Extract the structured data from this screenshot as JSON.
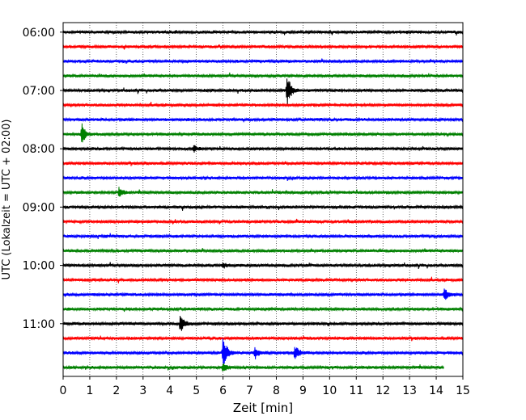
{
  "chart_data": {
    "type": "line",
    "title": "",
    "xlabel": "Zeit  [min]",
    "ylabel": "UTC (Lokalzeit = UTC + 02:00)",
    "xlim": [
      0,
      15
    ],
    "x_ticks": [
      "0",
      "1",
      "2",
      "3",
      "4",
      "5",
      "6",
      "7",
      "8",
      "9",
      "10",
      "11",
      "12",
      "13",
      "14",
      "15"
    ],
    "y_tick_labels": [
      "06:00",
      "07:00",
      "08:00",
      "09:00",
      "10:00",
      "11:00"
    ],
    "vertical_grid": true,
    "grid_style": "dotted",
    "trace_colors": [
      "#000000",
      "#ff0000",
      "#0000ff",
      "#008000"
    ],
    "trace_start_times": [
      "06:00",
      "06:15",
      "06:30",
      "06:45",
      "07:00",
      "07:15",
      "07:30",
      "07:45",
      "08:00",
      "08:15",
      "08:30",
      "08:45",
      "09:00",
      "09:15",
      "09:30",
      "09:45",
      "10:00",
      "10:15",
      "10:30",
      "10:45",
      "11:00",
      "11:15",
      "11:30",
      "11:45"
    ],
    "last_trace_end_min": 14.3,
    "events": [
      {
        "trace": 4,
        "time_min": 8.4,
        "amplitude": 1.0
      },
      {
        "trace": 7,
        "time_min": 0.7,
        "amplitude": 0.6
      },
      {
        "trace": 8,
        "time_min": 4.9,
        "amplitude": 0.2
      },
      {
        "trace": 11,
        "time_min": 2.1,
        "amplitude": 0.3
      },
      {
        "trace": 16,
        "time_min": 6.0,
        "amplitude": 0.15
      },
      {
        "trace": 18,
        "time_min": 14.3,
        "amplitude": 0.35
      },
      {
        "trace": 20,
        "time_min": 4.4,
        "amplitude": 0.55
      },
      {
        "trace": 22,
        "time_min": 6.0,
        "amplitude": 1.0
      },
      {
        "trace": 22,
        "time_min": 7.2,
        "amplitude": 0.35
      },
      {
        "trace": 22,
        "time_min": 8.7,
        "amplitude": 0.45
      },
      {
        "trace": 23,
        "time_min": 6.0,
        "amplitude": 0.3
      }
    ]
  }
}
